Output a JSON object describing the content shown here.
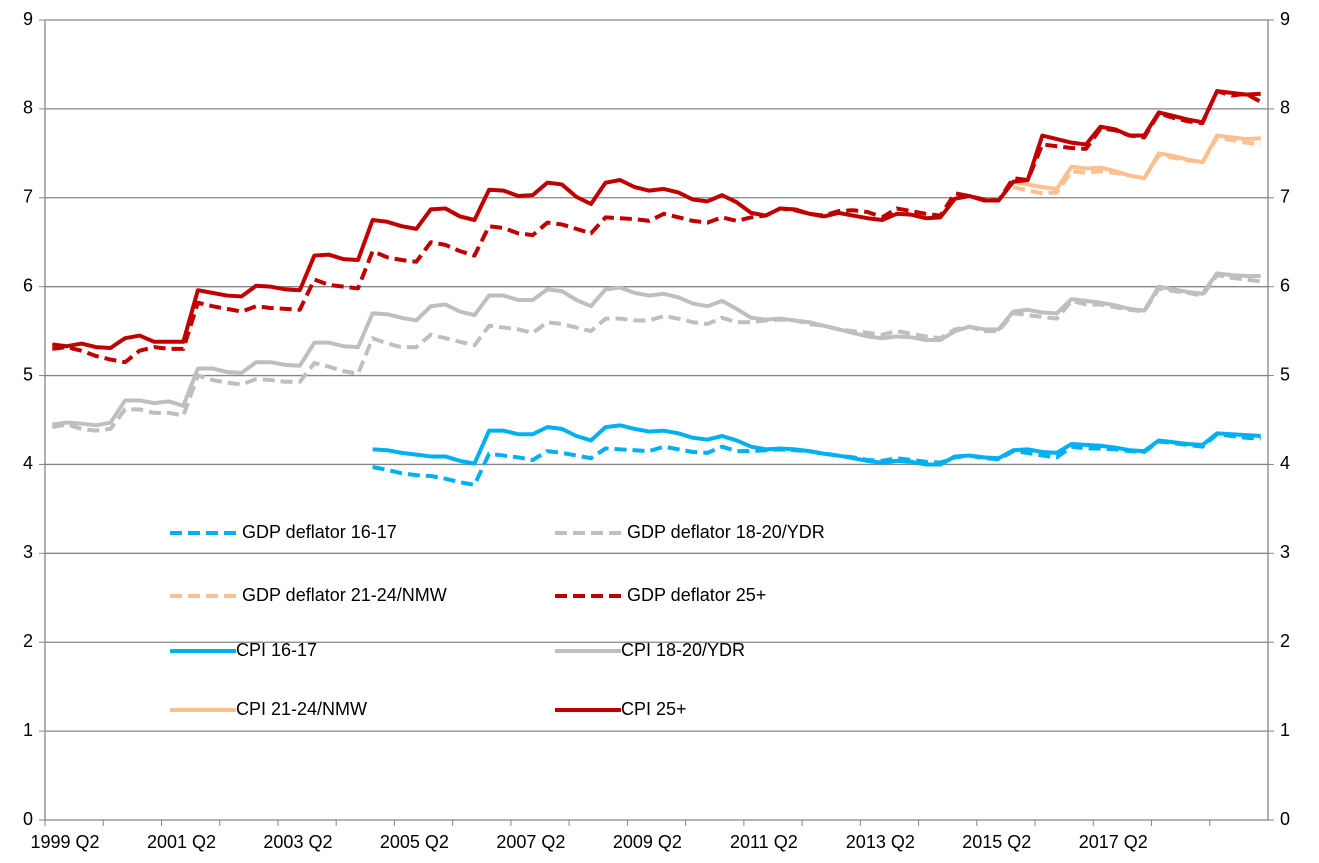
{
  "chart_data": {
    "type": "line",
    "categories": [
      "1999 Q2",
      null,
      null,
      null,
      null,
      null,
      null,
      null,
      "2001 Q2",
      null,
      null,
      null,
      null,
      null,
      null,
      null,
      "2003 Q2",
      null,
      null,
      null,
      null,
      null,
      null,
      null,
      "2005 Q2",
      null,
      null,
      null,
      null,
      null,
      null,
      null,
      "2007 Q2",
      null,
      null,
      null,
      null,
      null,
      null,
      null,
      "2009 Q2",
      null,
      null,
      null,
      null,
      null,
      null,
      null,
      "2011 Q2",
      null,
      null,
      null,
      null,
      null,
      null,
      null,
      "2013 Q2",
      null,
      null,
      null,
      null,
      null,
      null,
      null,
      "2015 Q2",
      null,
      null,
      null,
      null,
      null,
      null,
      null,
      "2017 Q2",
      null,
      null,
      null,
      null,
      null,
      null,
      null,
      null,
      null,
      null,
      null
    ],
    "ylim": [
      0,
      9
    ],
    "yticks": [
      0,
      1,
      2,
      3,
      4,
      5,
      6,
      7,
      8,
      9
    ],
    "y2lim": [
      0,
      9
    ],
    "y2ticks": [
      0,
      1,
      2,
      3,
      4,
      5,
      6,
      7,
      8,
      9
    ],
    "grid": true,
    "series": [
      {
        "name": "GDP deflator 16-17",
        "color": "#00b0f0",
        "dash": true,
        "values": [
          null,
          null,
          null,
          null,
          null,
          null,
          null,
          null,
          null,
          null,
          null,
          null,
          null,
          null,
          null,
          null,
          null,
          null,
          null,
          null,
          null,
          null,
          3.97,
          3.94,
          3.9,
          3.88,
          3.87,
          3.84,
          3.8,
          3.77,
          4.12,
          4.1,
          4.08,
          4.05,
          4.15,
          4.13,
          4.1,
          4.07,
          4.18,
          4.17,
          4.16,
          4.15,
          4.2,
          4.17,
          4.14,
          4.13,
          4.2,
          4.15,
          4.15,
          4.16,
          4.17,
          4.16,
          4.15,
          4.12,
          4.1,
          4.08,
          4.05,
          4.04,
          4.07,
          4.05,
          4.03,
          4.02,
          4.08,
          4.1,
          4.07,
          4.06,
          4.15,
          4.13,
          4.1,
          4.08,
          4.2,
          4.18,
          4.18,
          4.17,
          4.15,
          4.14,
          4.26,
          4.24,
          4.22,
          4.2,
          4.34,
          4.32,
          4.3,
          4.29
        ]
      },
      {
        "name": "GDP deflator 18-20/YDR",
        "color": "#bfbfbf",
        "dash": true,
        "values": [
          4.42,
          4.45,
          4.4,
          4.38,
          4.4,
          4.62,
          4.62,
          4.58,
          4.58,
          4.55,
          5.0,
          4.95,
          4.92,
          4.9,
          4.96,
          4.95,
          4.93,
          4.93,
          5.14,
          5.1,
          5.05,
          5.02,
          5.42,
          5.36,
          5.32,
          5.32,
          5.46,
          5.42,
          5.38,
          5.34,
          5.56,
          5.54,
          5.52,
          5.48,
          5.6,
          5.58,
          5.54,
          5.5,
          5.64,
          5.64,
          5.62,
          5.62,
          5.67,
          5.64,
          5.6,
          5.58,
          5.65,
          5.6,
          5.6,
          5.62,
          5.63,
          5.62,
          5.58,
          5.56,
          5.52,
          5.5,
          5.48,
          5.46,
          5.5,
          5.47,
          5.44,
          5.42,
          5.52,
          5.55,
          5.5,
          5.5,
          5.7,
          5.68,
          5.66,
          5.64,
          5.84,
          5.8,
          5.8,
          5.77,
          5.74,
          5.72,
          5.98,
          5.95,
          5.93,
          5.9,
          6.13,
          6.1,
          6.08,
          6.06
        ]
      },
      {
        "name": "GDP deflator 21-24/NMW",
        "color": "#fac090",
        "dash": true,
        "values": [
          null,
          null,
          null,
          null,
          null,
          null,
          null,
          null,
          null,
          null,
          null,
          null,
          null,
          null,
          null,
          null,
          null,
          null,
          null,
          null,
          null,
          null,
          null,
          null,
          null,
          null,
          null,
          null,
          null,
          null,
          null,
          null,
          null,
          null,
          null,
          null,
          null,
          null,
          null,
          null,
          null,
          null,
          null,
          null,
          null,
          null,
          null,
          null,
          null,
          null,
          null,
          null,
          null,
          null,
          null,
          null,
          null,
          null,
          null,
          null,
          null,
          null,
          null,
          null,
          null,
          null,
          7.12,
          7.08,
          7.05,
          7.06,
          7.3,
          7.28,
          7.3,
          7.28,
          7.25,
          7.22,
          7.48,
          7.45,
          7.42,
          7.4,
          7.68,
          7.65,
          7.62,
          7.6
        ]
      },
      {
        "name": "GDP deflator 25+",
        "color": "#c00000",
        "dash": true,
        "values": [
          5.3,
          5.32,
          5.28,
          5.22,
          5.18,
          5.15,
          5.28,
          5.32,
          5.3,
          5.3,
          5.82,
          5.78,
          5.75,
          5.72,
          5.78,
          5.76,
          5.75,
          5.74,
          6.08,
          6.02,
          6.0,
          5.98,
          6.4,
          6.33,
          6.3,
          6.28,
          6.5,
          6.47,
          6.4,
          6.35,
          6.68,
          6.66,
          6.6,
          6.58,
          6.72,
          6.7,
          6.65,
          6.6,
          6.78,
          6.77,
          6.76,
          6.74,
          6.82,
          6.78,
          6.74,
          6.72,
          6.78,
          6.74,
          6.78,
          6.8,
          6.88,
          6.86,
          6.82,
          6.8,
          6.85,
          6.86,
          6.84,
          6.78,
          6.88,
          6.85,
          6.82,
          6.8,
          7.05,
          7.02,
          6.98,
          6.97,
          7.22,
          7.2,
          7.6,
          7.58,
          7.56,
          7.55,
          7.78,
          7.76,
          7.7,
          7.68,
          7.95,
          7.9,
          7.86,
          7.84,
          8.2,
          8.15,
          8.17,
          8.08
        ]
      },
      {
        "name": "CPI 16-17",
        "color": "#00b0f0",
        "dash": false,
        "values": [
          null,
          null,
          null,
          null,
          null,
          null,
          null,
          null,
          null,
          null,
          null,
          null,
          null,
          null,
          null,
          null,
          null,
          null,
          null,
          null,
          null,
          null,
          4.17,
          4.16,
          4.13,
          4.11,
          4.09,
          4.09,
          4.04,
          4.01,
          4.38,
          4.38,
          4.34,
          4.34,
          4.42,
          4.4,
          4.32,
          4.27,
          4.42,
          4.44,
          4.4,
          4.37,
          4.38,
          4.35,
          4.3,
          4.28,
          4.32,
          4.27,
          4.2,
          4.17,
          4.18,
          4.17,
          4.15,
          4.12,
          4.1,
          4.07,
          4.04,
          4.02,
          4.04,
          4.03,
          4.0,
          4.0,
          4.09,
          4.1,
          4.08,
          4.07,
          4.16,
          4.17,
          4.14,
          4.13,
          4.23,
          4.22,
          4.21,
          4.19,
          4.16,
          4.15,
          4.27,
          4.25,
          4.23,
          4.22,
          4.35,
          4.34,
          4.33,
          4.32
        ]
      },
      {
        "name": "CPI 18-20/YDR",
        "color": "#bfbfbf",
        "dash": false,
        "values": [
          4.45,
          4.47,
          4.46,
          4.44,
          4.47,
          4.72,
          4.72,
          4.69,
          4.71,
          4.66,
          5.08,
          5.08,
          5.04,
          5.03,
          5.15,
          5.15,
          5.12,
          5.11,
          5.37,
          5.37,
          5.33,
          5.32,
          5.7,
          5.69,
          5.65,
          5.62,
          5.78,
          5.8,
          5.72,
          5.68,
          5.9,
          5.9,
          5.85,
          5.85,
          5.97,
          5.95,
          5.85,
          5.78,
          5.97,
          5.99,
          5.93,
          5.9,
          5.92,
          5.88,
          5.81,
          5.78,
          5.84,
          5.75,
          5.65,
          5.63,
          5.64,
          5.62,
          5.6,
          5.56,
          5.52,
          5.48,
          5.44,
          5.42,
          5.44,
          5.43,
          5.4,
          5.4,
          5.5,
          5.55,
          5.52,
          5.52,
          5.72,
          5.74,
          5.71,
          5.7,
          5.86,
          5.84,
          5.82,
          5.79,
          5.75,
          5.73,
          6.0,
          5.97,
          5.94,
          5.92,
          6.15,
          6.13,
          6.12,
          6.12
        ]
      },
      {
        "name": "CPI 21-24/NMW",
        "color": "#fac090",
        "dash": false,
        "values": [
          null,
          null,
          null,
          null,
          null,
          null,
          null,
          null,
          null,
          null,
          null,
          null,
          null,
          null,
          null,
          null,
          null,
          null,
          null,
          null,
          null,
          null,
          null,
          null,
          null,
          null,
          null,
          null,
          null,
          null,
          null,
          null,
          null,
          null,
          null,
          null,
          null,
          null,
          null,
          null,
          null,
          null,
          null,
          null,
          null,
          null,
          null,
          null,
          null,
          null,
          null,
          null,
          null,
          null,
          null,
          null,
          null,
          null,
          null,
          null,
          null,
          null,
          null,
          null,
          null,
          null,
          7.18,
          7.15,
          7.12,
          7.1,
          7.35,
          7.33,
          7.34,
          7.3,
          7.25,
          7.22,
          7.5,
          7.47,
          7.43,
          7.4,
          7.7,
          7.68,
          7.66,
          7.67
        ]
      },
      {
        "name": "CPI 25+",
        "color": "#c00000",
        "dash": false,
        "values": [
          5.35,
          5.33,
          5.36,
          5.32,
          5.31,
          5.42,
          5.45,
          5.38,
          5.38,
          5.38,
          5.96,
          5.93,
          5.9,
          5.89,
          6.01,
          6.0,
          5.97,
          5.96,
          6.35,
          6.36,
          6.31,
          6.3,
          6.75,
          6.73,
          6.68,
          6.65,
          6.87,
          6.88,
          6.79,
          6.75,
          7.09,
          7.08,
          7.02,
          7.03,
          7.17,
          7.15,
          7.01,
          6.93,
          7.17,
          7.2,
          7.12,
          7.08,
          7.1,
          7.06,
          6.98,
          6.96,
          7.03,
          6.95,
          6.83,
          6.8,
          6.88,
          6.87,
          6.82,
          6.79,
          6.83,
          6.8,
          6.77,
          6.75,
          6.82,
          6.81,
          6.77,
          6.78,
          6.99,
          7.02,
          6.97,
          6.97,
          7.18,
          7.2,
          7.7,
          7.66,
          7.62,
          7.6,
          7.8,
          7.77,
          7.7,
          7.7,
          7.96,
          7.92,
          7.88,
          7.85,
          8.2,
          8.18,
          8.16,
          8.17
        ]
      }
    ]
  }
}
